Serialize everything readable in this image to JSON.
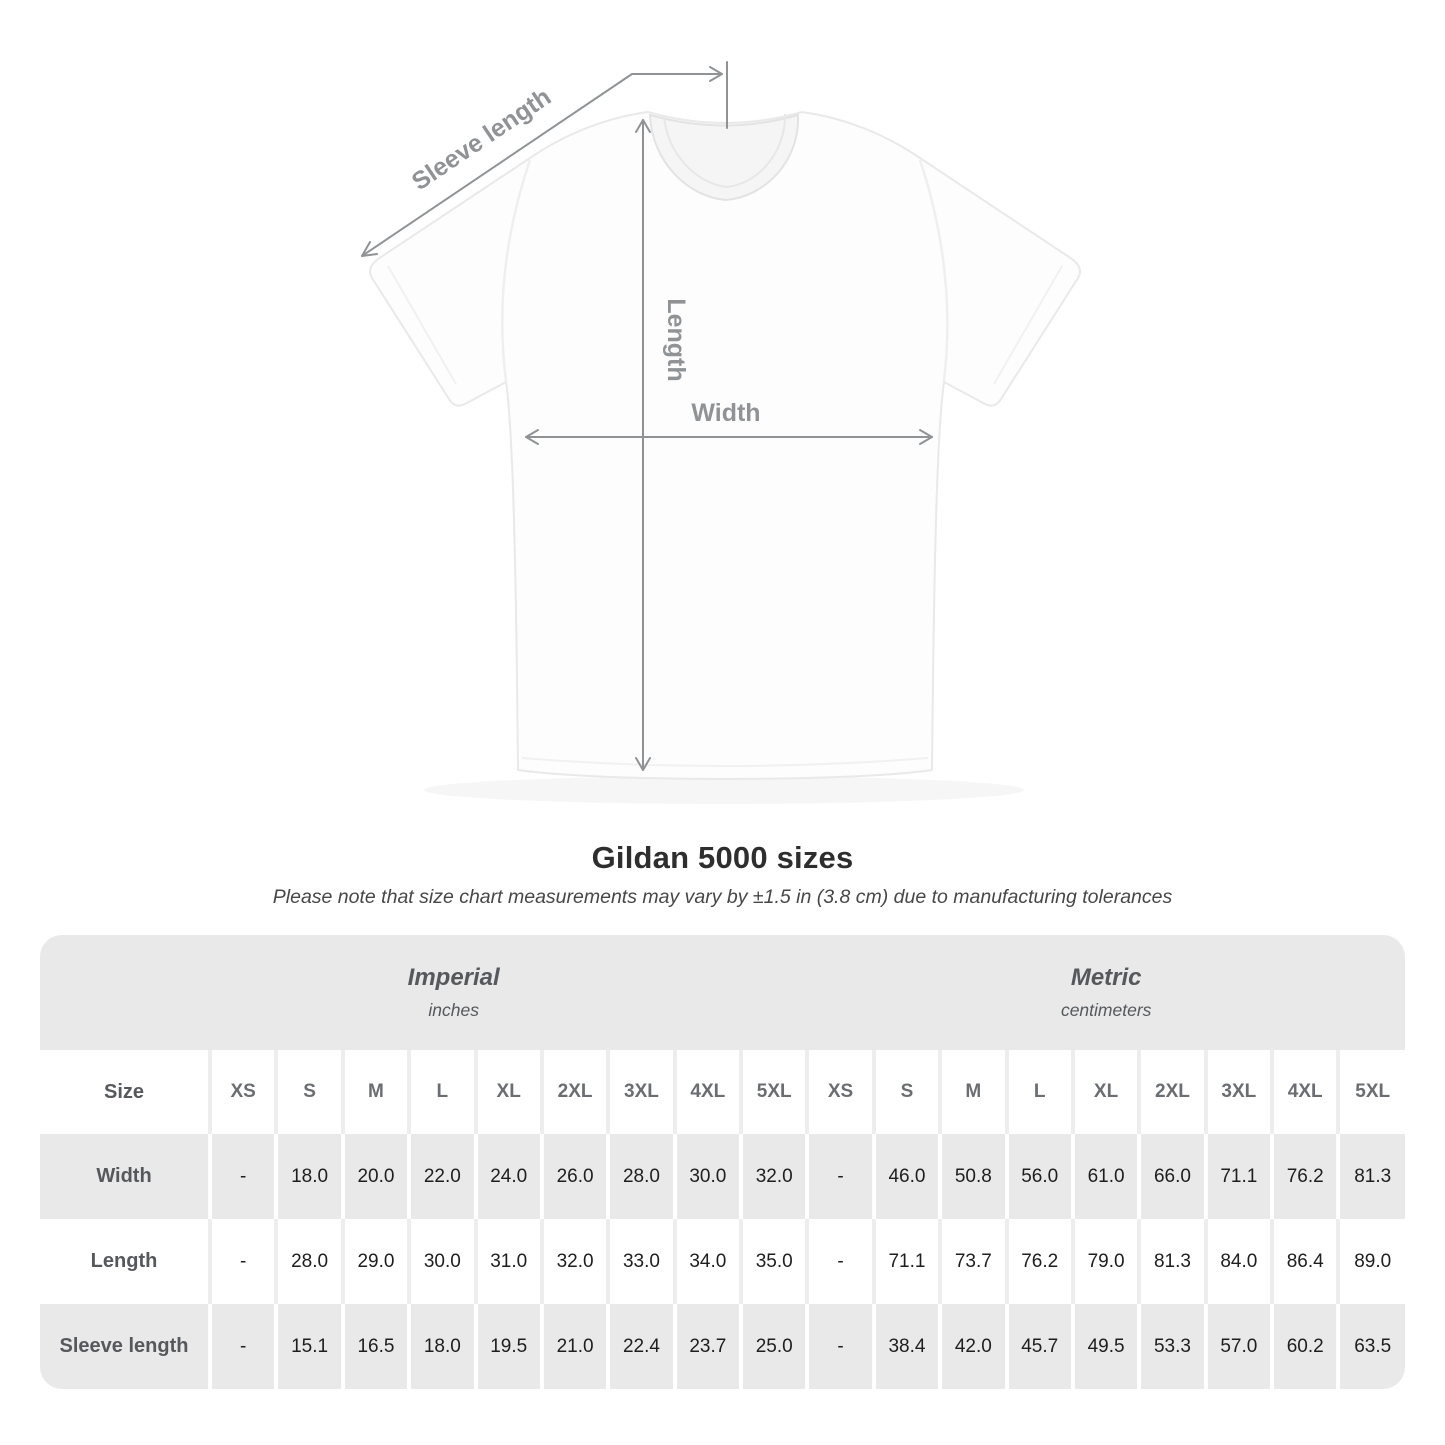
{
  "title": "Gildan 5000 sizes",
  "subtitle": "Please note that size chart measurements may vary by ±1.5 in (3.8 cm) due to manufacturing tolerances",
  "diagram": {
    "sleeve_label": "Sleeve length",
    "length_label": "Length",
    "width_label": "Width"
  },
  "table": {
    "size_header": "Size",
    "groups": [
      {
        "label": "Imperial",
        "sublabel": "inches"
      },
      {
        "label": "Metric",
        "sublabel": "centimeters"
      }
    ],
    "sizes": [
      "XS",
      "S",
      "M",
      "L",
      "XL",
      "2XL",
      "3XL",
      "4XL",
      "5XL"
    ],
    "rows": [
      {
        "label": "Width",
        "imperial": [
          "-",
          "18.0",
          "20.0",
          "22.0",
          "24.0",
          "26.0",
          "28.0",
          "30.0",
          "32.0"
        ],
        "metric": [
          "-",
          "46.0",
          "50.8",
          "56.0",
          "61.0",
          "66.0",
          "71.1",
          "76.2",
          "81.3"
        ]
      },
      {
        "label": "Length",
        "imperial": [
          "-",
          "28.0",
          "29.0",
          "30.0",
          "31.0",
          "32.0",
          "33.0",
          "34.0",
          "35.0"
        ],
        "metric": [
          "-",
          "71.1",
          "73.7",
          "76.2",
          "79.0",
          "81.3",
          "84.0",
          "86.4",
          "89.0"
        ]
      },
      {
        "label": "Sleeve length",
        "imperial": [
          "-",
          "15.1",
          "16.5",
          "18.0",
          "19.5",
          "21.0",
          "22.4",
          "23.7",
          "25.0"
        ],
        "metric": [
          "-",
          "38.4",
          "42.0",
          "45.7",
          "49.5",
          "53.3",
          "57.0",
          "60.2",
          "63.5"
        ]
      }
    ]
  },
  "colors": {
    "band_gray": "#e9e9e9",
    "separator_on_white": "#ededed",
    "separator_on_gray": "#ffffff",
    "arrow_gray": "#8f9396",
    "value_text": "#1e1e1e",
    "label_text": "#55595d"
  }
}
